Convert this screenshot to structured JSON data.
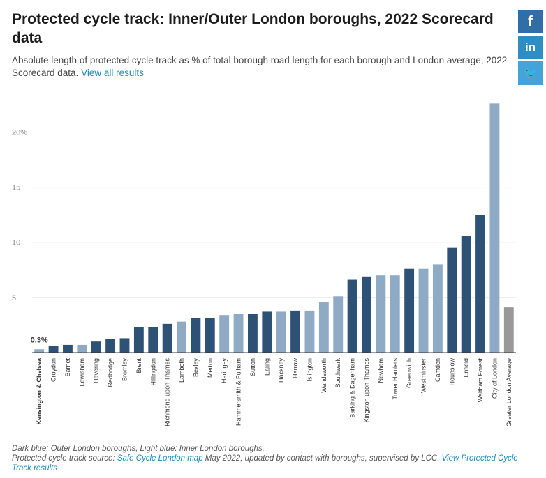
{
  "header": {
    "title": "Protected cycle track: Inner/Outer London boroughs, 2022 Scorecard data",
    "subtitle": "Absolute length of protected cycle track as % of total borough road length for each borough and London average, 2022 Scorecard data.",
    "subtitle_link": "View all results"
  },
  "share": {
    "facebook": "f",
    "linkedin": "in",
    "twitter": "🐦"
  },
  "colors": {
    "outer": "#2e5275",
    "inner": "#8faac4",
    "average": "#999999",
    "grid": "#e3e3e3"
  },
  "chart_data": {
    "type": "bar",
    "ylim": [
      0,
      23
    ],
    "yticks": [
      {
        "v": 5,
        "label": "5"
      },
      {
        "v": 10,
        "label": "10"
      },
      {
        "v": 15,
        "label": "15"
      },
      {
        "v": 20,
        "label": "20%"
      }
    ],
    "annotation": {
      "index": 0,
      "text": "0.3%"
    },
    "categories": [
      "Kensington & Chelsea",
      "Croydon",
      "Barnet",
      "Lewisham",
      "Havering",
      "Redbridge",
      "Bromley",
      "Brent",
      "Hillingdon",
      "Richmond upon Thames",
      "Lambeth",
      "Bexley",
      "Merton",
      "Haringey",
      "Hammersmith & Fulham",
      "Sutton",
      "Ealing",
      "Hackney",
      "Harrow",
      "Islington",
      "Wandsworth",
      "Southwark",
      "Barking & Dagenham",
      "Kingston upon Thames",
      "Newham",
      "Tower Hamlets",
      "Greenwich",
      "Westminster",
      "Camden",
      "Hounslow",
      "Enfield",
      "Waltham Forest",
      "City of London",
      "Greater London Average"
    ],
    "values": [
      0.3,
      0.6,
      0.7,
      0.7,
      1.0,
      1.2,
      1.3,
      2.3,
      2.3,
      2.6,
      2.8,
      3.1,
      3.1,
      3.4,
      3.5,
      3.5,
      3.7,
      3.7,
      3.8,
      3.8,
      4.6,
      5.1,
      6.6,
      6.9,
      7.0,
      7.0,
      7.6,
      7.6,
      8.0,
      9.5,
      10.6,
      12.5,
      22.6,
      4.1
    ],
    "groups": [
      "inner",
      "outer",
      "outer",
      "inner",
      "outer",
      "outer",
      "outer",
      "outer",
      "outer",
      "outer",
      "inner",
      "outer",
      "outer",
      "inner",
      "inner",
      "outer",
      "outer",
      "inner",
      "outer",
      "inner",
      "inner",
      "inner",
      "outer",
      "outer",
      "inner",
      "inner",
      "outer",
      "inner",
      "inner",
      "outer",
      "outer",
      "outer",
      "inner",
      "average"
    ]
  },
  "footer": {
    "line1": "Dark blue: Outer London boroughs, Light blue: Inner London boroughs.",
    "line2_pre": "Protected cycle track source: ",
    "line2_link1": "Safe Cycle London map",
    "line2_mid": " May 2022, updated by contact with boroughs, supervised by LCC. ",
    "line2_link2": "View Protected Cycle Track results"
  }
}
